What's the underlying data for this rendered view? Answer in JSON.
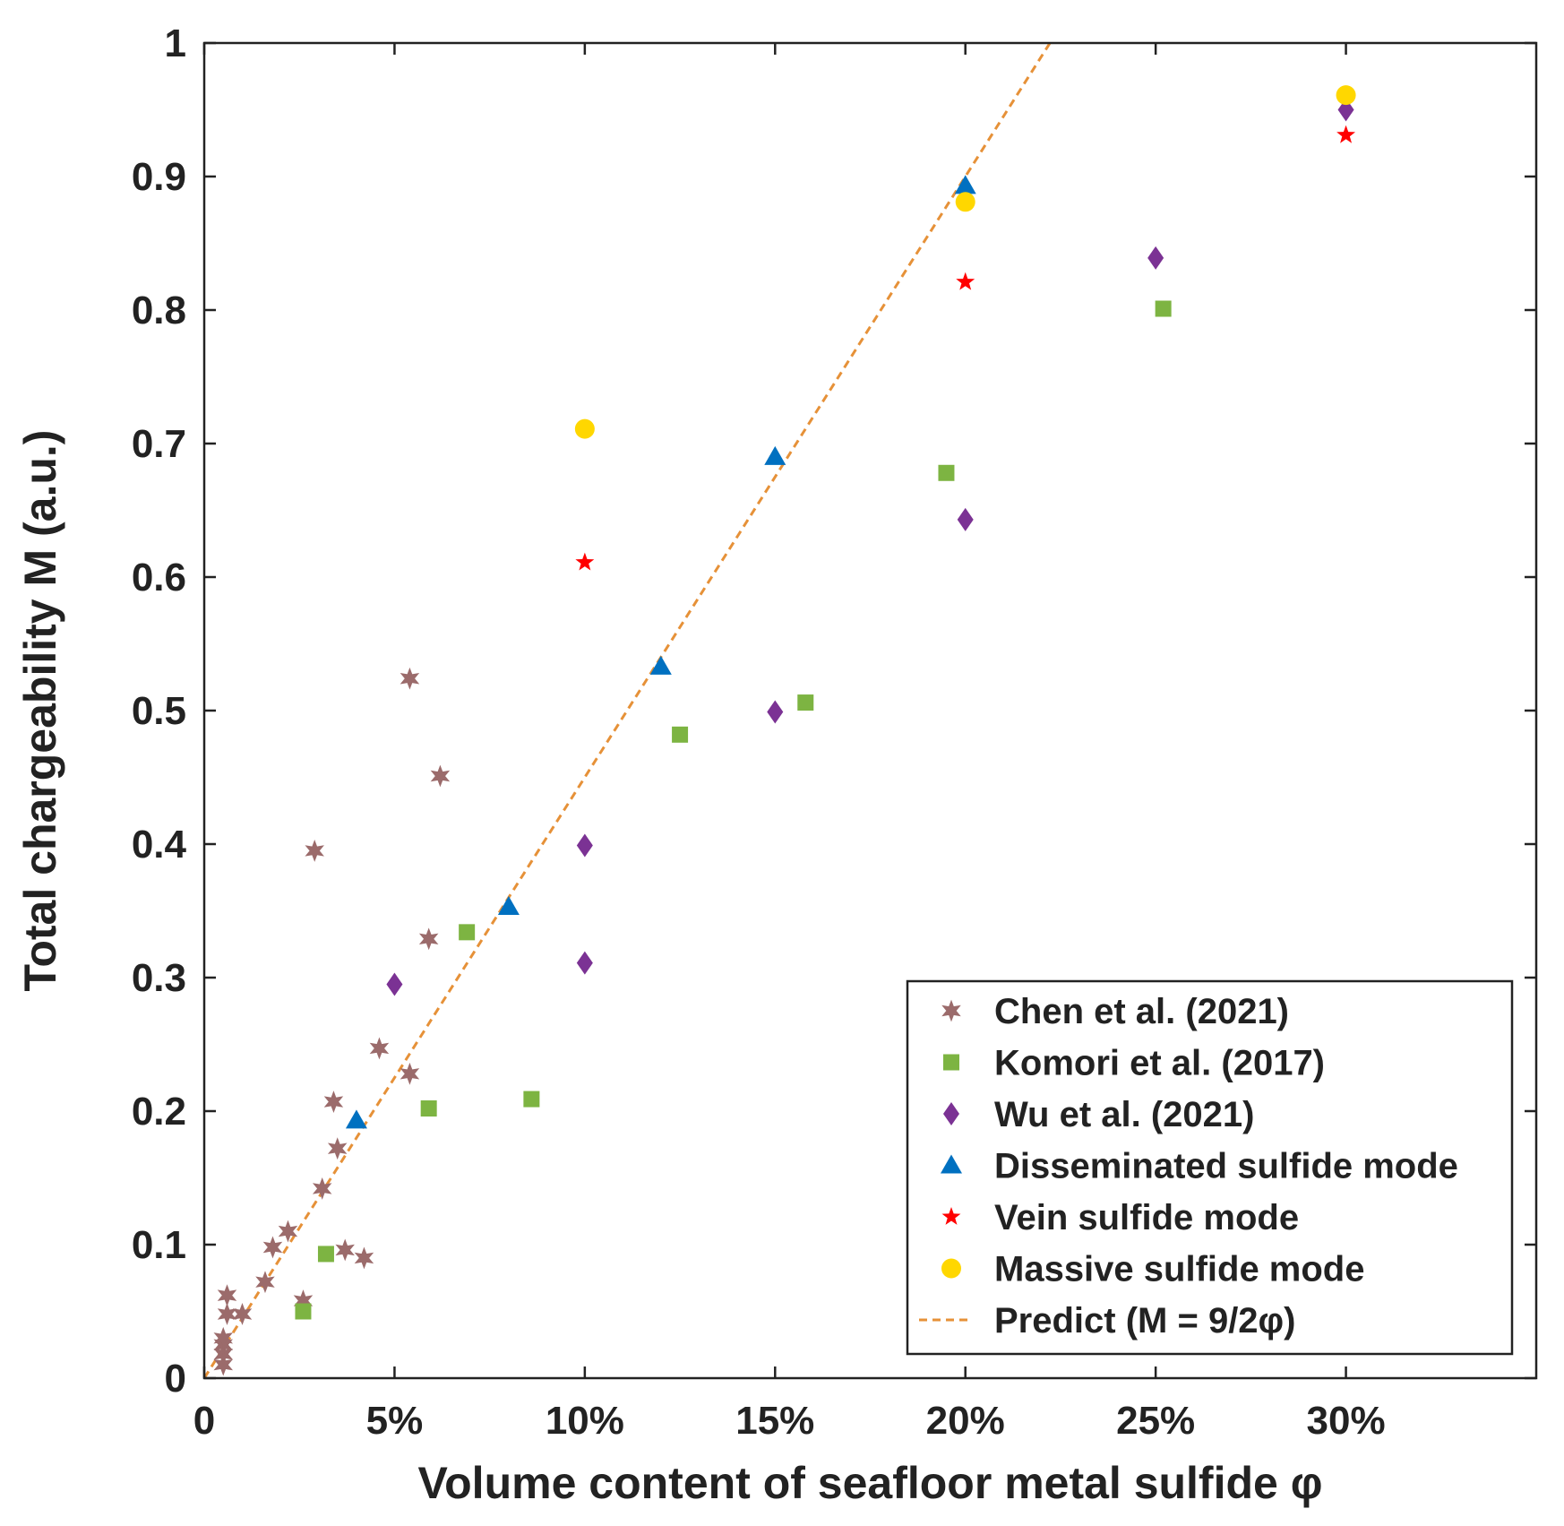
{
  "chart_data": {
    "type": "scatter",
    "title": "",
    "xlabel": "Volume content of seafloor metal sulfide φ",
    "ylabel": "Total chargeability M (a.u.)",
    "xlim": [
      0,
      0.35
    ],
    "ylim": [
      0,
      1
    ],
    "x_ticks": [
      {
        "value": 0,
        "label": "0"
      },
      {
        "value": 0.05,
        "label": "5%"
      },
      {
        "value": 0.1,
        "label": "10%"
      },
      {
        "value": 0.15,
        "label": "15%"
      },
      {
        "value": 0.2,
        "label": "20%"
      },
      {
        "value": 0.25,
        "label": "25%"
      },
      {
        "value": 0.3,
        "label": "30%"
      }
    ],
    "y_ticks": [
      {
        "value": 0,
        "label": "0"
      },
      {
        "value": 0.1,
        "label": "0.1"
      },
      {
        "value": 0.2,
        "label": "0.2"
      },
      {
        "value": 0.3,
        "label": "0.3"
      },
      {
        "value": 0.4,
        "label": "0.4"
      },
      {
        "value": 0.5,
        "label": "0.5"
      },
      {
        "value": 0.6,
        "label": "0.6"
      },
      {
        "value": 0.7,
        "label": "0.7"
      },
      {
        "value": 0.8,
        "label": "0.8"
      },
      {
        "value": 0.9,
        "label": "0.9"
      },
      {
        "value": 1,
        "label": "1"
      }
    ],
    "grid": false,
    "legend_position": "bottom-right",
    "series": [
      {
        "name": "Chen et al. (2021)",
        "marker": "hexstar",
        "color": "#9b6b6b",
        "points": [
          [
            0.005,
            0.01
          ],
          [
            0.005,
            0.018
          ],
          [
            0.005,
            0.025
          ],
          [
            0.005,
            0.03
          ],
          [
            0.006,
            0.048
          ],
          [
            0.006,
            0.062
          ],
          [
            0.01,
            0.048
          ],
          [
            0.016,
            0.072
          ],
          [
            0.018,
            0.098
          ],
          [
            0.022,
            0.11
          ],
          [
            0.026,
            0.058
          ],
          [
            0.029,
            0.395
          ],
          [
            0.031,
            0.142
          ],
          [
            0.034,
            0.207
          ],
          [
            0.035,
            0.172
          ],
          [
            0.037,
            0.096
          ],
          [
            0.042,
            0.09
          ],
          [
            0.046,
            0.247
          ],
          [
            0.054,
            0.228
          ],
          [
            0.054,
            0.524
          ],
          [
            0.059,
            0.329
          ],
          [
            0.062,
            0.451
          ]
        ]
      },
      {
        "name": "Komori et al. (2017)",
        "marker": "square",
        "color": "#7db442",
        "points": [
          [
            0.026,
            0.05
          ],
          [
            0.032,
            0.093
          ],
          [
            0.059,
            0.202
          ],
          [
            0.069,
            0.334
          ],
          [
            0.086,
            0.209
          ],
          [
            0.125,
            0.482
          ],
          [
            0.158,
            0.506
          ],
          [
            0.195,
            0.678
          ],
          [
            0.252,
            0.801
          ]
        ]
      },
      {
        "name": "Wu et al. (2021)",
        "marker": "diamond",
        "color": "#7b3294",
        "points": [
          [
            0.05,
            0.295
          ],
          [
            0.1,
            0.311
          ],
          [
            0.1,
            0.399
          ],
          [
            0.15,
            0.499
          ],
          [
            0.2,
            0.643
          ],
          [
            0.25,
            0.839
          ],
          [
            0.3,
            0.95
          ]
        ]
      },
      {
        "name": "Disseminated sulfide mode",
        "marker": "triangle",
        "color": "#0070c0",
        "points": [
          [
            0.04,
            0.193
          ],
          [
            0.08,
            0.353
          ],
          [
            0.12,
            0.533
          ],
          [
            0.15,
            0.69
          ],
          [
            0.2,
            0.893
          ]
        ]
      },
      {
        "name": "Vein sulfide mode",
        "marker": "star",
        "color": "#ff0000",
        "points": [
          [
            0.1,
            0.611
          ],
          [
            0.2,
            0.821
          ],
          [
            0.3,
            0.931
          ]
        ]
      },
      {
        "name": "Massive sulfide mode",
        "marker": "circle",
        "color": "#ffd700",
        "points": [
          [
            0.1,
            0.711
          ],
          [
            0.2,
            0.881
          ],
          [
            0.3,
            0.961
          ]
        ]
      },
      {
        "name": "Predict (M = 9/2φ)",
        "marker": "dashed-line",
        "color": "#e69138",
        "slope": 4.5,
        "intercept": 0,
        "x_range": [
          0,
          0.2222
        ]
      }
    ]
  }
}
